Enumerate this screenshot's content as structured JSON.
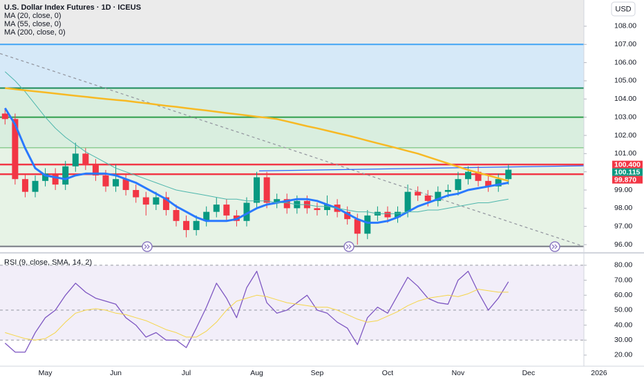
{
  "currency": "USD",
  "chart_data": [
    {
      "type": "candlestick",
      "title": "U.S. Dollar Index Futures · 1D · ICEUS",
      "categories": [
        null,
        null,
        null,
        null,
        "May",
        null,
        null,
        null,
        null,
        null,
        null,
        "Jun",
        null,
        null,
        null,
        null,
        null,
        null,
        "Jul",
        null,
        null,
        null,
        null,
        null,
        null,
        "Aug",
        null,
        null,
        null,
        null,
        null,
        "Sep",
        null,
        null,
        null,
        null,
        null,
        null,
        "Oct",
        null,
        null,
        null,
        null,
        null,
        null,
        "Nov",
        null,
        null,
        null,
        null,
        null,
        null,
        "Dec",
        null,
        null,
        null,
        null,
        null,
        null,
        "2026"
      ],
      "open": [
        103.2,
        102.9,
        99.6,
        98.9,
        99.5,
        99.9,
        99.3,
        100.3,
        101.0,
        100.4,
        99.8,
        99.2,
        99.6,
        99.0,
        98.6,
        98.2,
        98.6,
        97.9,
        97.3,
        96.8,
        97.3,
        97.8,
        98.2,
        97.6,
        97.3,
        98.3,
        99.7,
        98.3,
        98.5,
        98.0,
        98.4,
        98.0,
        97.9,
        98.2,
        97.8,
        97.4,
        96.6,
        97.6,
        97.8,
        97.5,
        97.8,
        98.9,
        98.7,
        98.4,
        98.9,
        99.0,
        99.6,
        100.0,
        99.5,
        99.2,
        99.6,
        null,
        null,
        null,
        null,
        null,
        null,
        null,
        null,
        null
      ],
      "high": [
        103.5,
        103.2,
        99.9,
        99.8,
        100.2,
        100.2,
        100.6,
        101.6,
        101.3,
        100.7,
        100.1,
        100.4,
        99.9,
        99.3,
        98.9,
        98.9,
        98.9,
        98.2,
        97.6,
        97.6,
        98.1,
        98.6,
        98.5,
        97.9,
        98.6,
        100.0,
        100.0,
        98.8,
        98.8,
        98.7,
        98.7,
        98.3,
        98.7,
        98.5,
        98.1,
        97.7,
        97.9,
        98.1,
        98.1,
        98.1,
        99.3,
        99.2,
        99.0,
        99.2,
        99.3,
        100.0,
        100.3,
        100.3,
        99.8,
        99.9,
        100.4,
        null,
        null,
        null,
        null,
        null,
        null,
        null,
        null,
        null
      ],
      "low": [
        102.6,
        99.3,
        98.6,
        98.6,
        99.2,
        99.0,
        99.0,
        100.0,
        100.1,
        99.5,
        98.9,
        98.9,
        98.7,
        98.3,
        97.6,
        97.9,
        97.6,
        97.0,
        96.4,
        96.5,
        97.0,
        97.5,
        97.3,
        97.0,
        97.0,
        98.0,
        98.0,
        98.0,
        97.7,
        97.7,
        97.7,
        97.6,
        97.6,
        97.5,
        97.1,
        96.0,
        96.3,
        97.3,
        97.2,
        97.2,
        97.5,
        98.4,
        98.1,
        98.1,
        98.6,
        98.7,
        99.3,
        99.2,
        98.9,
        98.9,
        99.3,
        null,
        null,
        null,
        null,
        null,
        null,
        null,
        null,
        null
      ],
      "close": [
        102.9,
        99.6,
        98.9,
        99.5,
        99.9,
        99.3,
        100.3,
        101.0,
        100.4,
        99.8,
        99.2,
        99.6,
        99.0,
        98.6,
        98.2,
        98.6,
        97.9,
        97.3,
        96.8,
        97.3,
        97.8,
        98.2,
        97.6,
        97.3,
        98.3,
        99.7,
        98.3,
        98.5,
        98.0,
        98.4,
        98.0,
        97.9,
        98.2,
        97.8,
        97.4,
        96.6,
        97.6,
        97.8,
        97.5,
        97.8,
        98.9,
        98.7,
        98.4,
        98.9,
        99.0,
        99.6,
        100.0,
        99.5,
        99.2,
        99.6,
        100.115,
        null,
        null,
        null,
        null,
        null,
        null,
        null,
        null,
        null
      ],
      "up_color": "#089981",
      "down_color": "#f23645",
      "series": [
        {
          "name": "MA (20, close, 0)",
          "color": "#2979ff",
          "values": [
            103.5,
            102.6,
            101.3,
            100.2,
            99.8,
            99.7,
            99.6,
            99.8,
            99.9,
            99.9,
            99.9,
            99.8,
            99.6,
            99.4,
            99.1,
            98.8,
            98.5,
            98.1,
            97.8,
            97.5,
            97.3,
            97.3,
            97.3,
            97.4,
            97.7,
            98.0,
            98.2,
            98.3,
            98.4,
            98.5,
            98.5,
            98.4,
            98.2,
            98.0,
            97.7,
            97.4,
            97.2,
            97.2,
            97.3,
            97.5,
            97.8,
            98.1,
            98.3,
            98.5,
            98.7,
            98.8,
            99.0,
            99.1,
            99.2,
            99.3,
            99.4,
            null,
            null,
            null,
            null,
            null,
            null,
            null,
            null,
            null
          ]
        },
        {
          "name": "MA (55, close, 0)",
          "color": "#4db6ac",
          "values": [
            105.5,
            105.0,
            104.4,
            103.7,
            103.0,
            102.4,
            101.9,
            101.5,
            101.1,
            100.8,
            100.5,
            100.2,
            100.0,
            99.8,
            99.6,
            99.4,
            99.2,
            99.0,
            98.9,
            98.8,
            98.7,
            98.6,
            98.5,
            98.5,
            98.4,
            98.4,
            98.4,
            98.3,
            98.3,
            98.2,
            98.2,
            98.1,
            98.1,
            98.0,
            97.9,
            97.8,
            97.8,
            97.7,
            97.7,
            97.7,
            97.8,
            97.8,
            97.9,
            97.9,
            98.0,
            98.1,
            98.2,
            98.3,
            98.3,
            98.4,
            98.5,
            null,
            null,
            null,
            null,
            null,
            null,
            null,
            null,
            null
          ]
        },
        {
          "name": "MA (200, close, 0)",
          "color": "#f7b924",
          "values": [
            104.6,
            104.54,
            104.48,
            104.42,
            104.36,
            104.3,
            104.24,
            104.18,
            104.12,
            104.06,
            104.0,
            103.95,
            103.9,
            103.83,
            103.77,
            103.7,
            103.63,
            103.57,
            103.5,
            103.43,
            103.37,
            103.3,
            103.23,
            103.17,
            103.1,
            103.03,
            102.97,
            102.9,
            102.77,
            102.64,
            102.51,
            102.39,
            102.26,
            102.13,
            102.0,
            101.86,
            101.71,
            101.57,
            101.43,
            101.29,
            101.14,
            101.0,
            100.82,
            100.64,
            100.46,
            100.28,
            100.1,
            99.95,
            99.8,
            99.65,
            99.5,
            null,
            null,
            null,
            null,
            null,
            null,
            null,
            null,
            null
          ]
        }
      ],
      "zones": [
        {
          "from": 104.6,
          "to": 107,
          "color": "#d6e9f8"
        },
        {
          "from": 101.32,
          "to": 104.6,
          "color": "#d9eedf"
        },
        {
          "from": 95.9,
          "to": 101.32,
          "color": "#e7f3e6"
        }
      ],
      "levels": [
        {
          "value": 107,
          "color": "#42a5f5"
        },
        {
          "value": 104.6,
          "color": "#1b8a5a"
        },
        {
          "value": 103,
          "color": "#2e9d4a"
        },
        {
          "value": 101.32,
          "color": "#66bb6a"
        },
        {
          "value": 100.4,
          "color": "#f23645"
        },
        {
          "value": 99.87,
          "color": "#f23645"
        },
        {
          "value": 95.9,
          "color": "#787b86"
        }
      ],
      "trendlines": [
        {
          "from": 106.5,
          "to": 95.9,
          "color": "#9598a1"
        },
        {
          "from": 100.05,
          "to": 100.33,
          "color": "#2962ff"
        }
      ],
      "price_labels": [
        {
          "value": 100.4,
          "label": "100.400",
          "color": "#f23645"
        },
        {
          "value": 100.115,
          "label": "100.115",
          "color": "#089981"
        },
        {
          "value": 99.87,
          "label": "99.870",
          "color": "#f23645"
        }
      ],
      "ylim": [
        95.85,
        109.44
      ],
      "yticks": [
        {
          "value": 96,
          "label": "96.00"
        },
        {
          "value": 97,
          "label": "97.00"
        },
        {
          "value": 98,
          "label": "98.00"
        },
        {
          "value": 99,
          "label": "99.00"
        },
        {
          "value": 100,
          "label": "100.00"
        },
        {
          "value": 101,
          "label": "101.00"
        },
        {
          "value": 102,
          "label": "102.00"
        },
        {
          "value": 103,
          "label": "103.00"
        },
        {
          "value": 104,
          "label": "104.00"
        },
        {
          "value": 105,
          "label": "105.00"
        },
        {
          "value": 106,
          "label": "106.00"
        },
        {
          "value": 107,
          "label": "107.00"
        },
        {
          "value": 108,
          "label": "108.00"
        }
      ]
    },
    {
      "type": "line",
      "title": "RSI (9, close, SMA, 14, 2)",
      "series": [
        {
          "color": "#7e57c2",
          "values": [
            28,
            22,
            22,
            35,
            45,
            50,
            60,
            68,
            62,
            58,
            56,
            54,
            45,
            40,
            32,
            35,
            30,
            30,
            25,
            38,
            52,
            68,
            58,
            45,
            65,
            76,
            55,
            48,
            50,
            55,
            60,
            50,
            48,
            42,
            38,
            27,
            45,
            52,
            48,
            60,
            72,
            66,
            58,
            55,
            54,
            70,
            76,
            62,
            50,
            58,
            69,
            null,
            null,
            null,
            null,
            null,
            null,
            null,
            null,
            null
          ]
        },
        {
          "color": "#f5d547",
          "values": [
            35,
            33,
            31,
            30,
            31,
            35,
            42,
            48,
            50,
            51,
            50,
            48,
            47,
            45,
            43,
            40,
            37,
            35,
            32,
            32,
            36,
            42,
            50,
            56,
            58,
            60,
            59,
            57,
            55,
            54,
            53,
            52,
            52,
            50,
            47,
            44,
            42,
            43,
            46,
            49,
            53,
            56,
            58,
            59,
            60,
            59,
            61,
            64,
            63,
            62,
            62,
            null,
            null,
            null,
            null,
            null,
            null,
            null,
            null,
            null
          ]
        }
      ],
      "band": [
        30,
        80
      ],
      "band_color": "#7e57c2",
      "levels": [
        80,
        50,
        30
      ],
      "ylim": [
        14.9,
        85.5
      ],
      "yticks": [
        {
          "value": 20,
          "label": "20.00"
        },
        {
          "value": 30,
          "label": "30.00"
        },
        {
          "value": 40,
          "label": "40.00"
        },
        {
          "value": 50,
          "label": "50.00"
        },
        {
          "value": 60,
          "label": "60.00"
        },
        {
          "value": 70,
          "label": "70.00"
        },
        {
          "value": 80,
          "label": "80.00"
        }
      ]
    }
  ]
}
